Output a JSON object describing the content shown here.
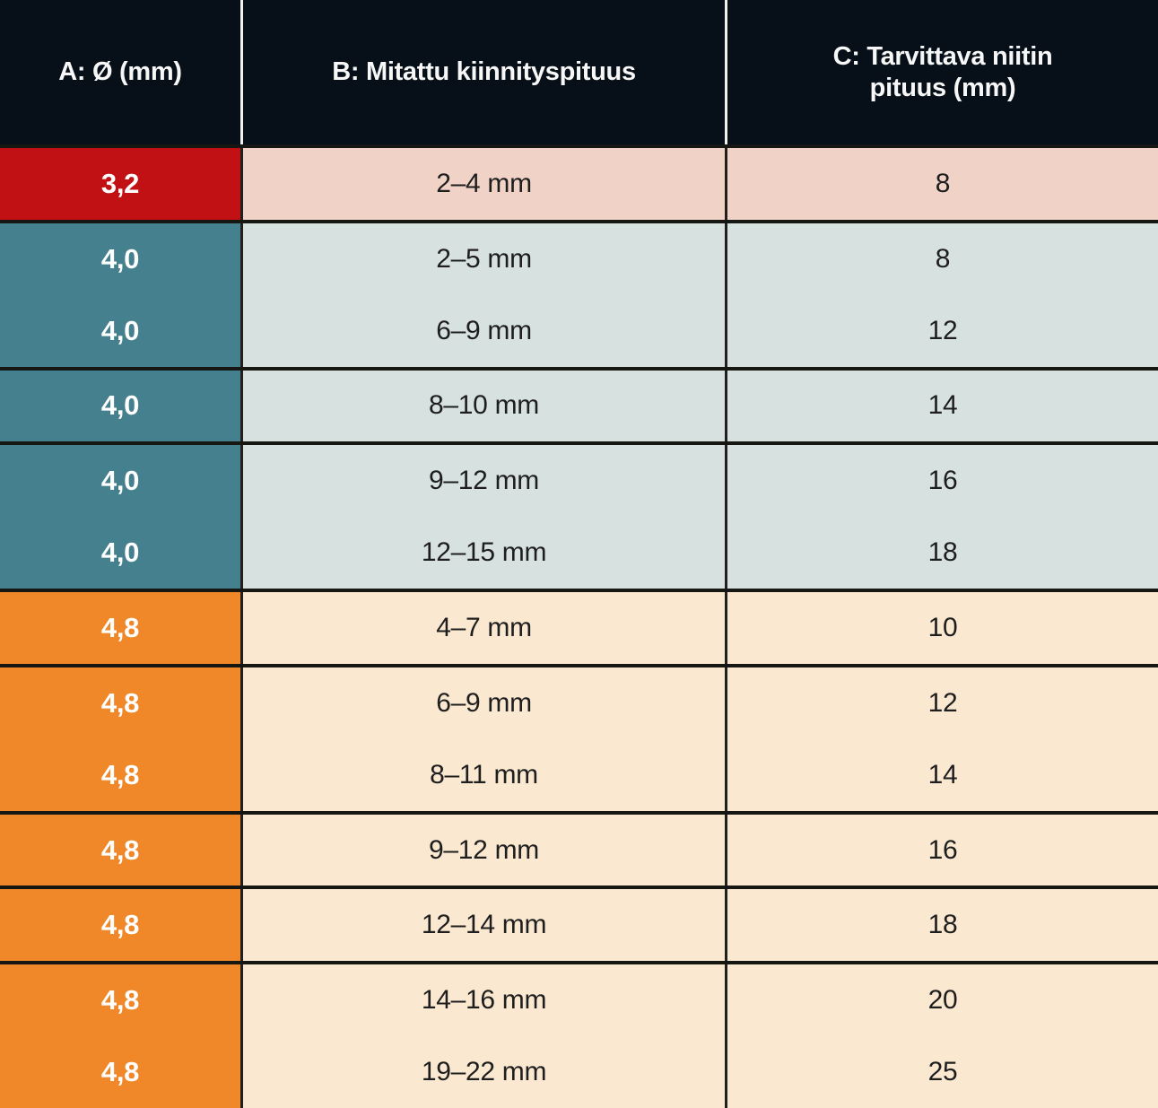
{
  "table": {
    "headers": {
      "diameter": "A: Ø (mm)",
      "grip": "B: Mitattu kiinnityspituus",
      "rivet_length": "C: Tarvittava niitin pituus (mm)"
    },
    "rows": [
      {
        "diameter": "3,2",
        "grip": "2–4 mm",
        "rivet_length": "8",
        "color": "red",
        "group_start": true
      },
      {
        "diameter": "4,0",
        "grip": "2–5 mm",
        "rivet_length": "8",
        "color": "teal",
        "group_start": true
      },
      {
        "diameter": "4,0",
        "grip": "6–9 mm",
        "rivet_length": "12",
        "color": "teal",
        "group_start": false
      },
      {
        "diameter": "4,0",
        "grip": "8–10 mm",
        "rivet_length": "14",
        "color": "teal",
        "group_start": true
      },
      {
        "diameter": "4,0",
        "grip": "9–12 mm",
        "rivet_length": "16",
        "color": "teal",
        "group_start": true
      },
      {
        "diameter": "4,0",
        "grip": "12–15 mm",
        "rivet_length": "18",
        "color": "teal",
        "group_start": false
      },
      {
        "diameter": "4,8",
        "grip": "4–7 mm",
        "rivet_length": "10",
        "color": "orange",
        "group_start": true
      },
      {
        "diameter": "4,8",
        "grip": "6–9 mm",
        "rivet_length": "12",
        "color": "orange",
        "group_start": true
      },
      {
        "diameter": "4,8",
        "grip": "8–11 mm",
        "rivet_length": "14",
        "color": "orange",
        "group_start": false
      },
      {
        "diameter": "4,8",
        "grip": "9–12 mm",
        "rivet_length": "16",
        "color": "orange",
        "group_start": true
      },
      {
        "diameter": "4,8",
        "grip": "12–14 mm",
        "rivet_length": "18",
        "color": "orange",
        "group_start": true
      },
      {
        "diameter": "4,8",
        "grip": "14–16 mm",
        "rivet_length": "20",
        "color": "orange",
        "group_start": true
      },
      {
        "diameter": "4,8",
        "grip": "19–22 mm",
        "rivet_length": "25",
        "color": "orange",
        "group_start": false
      }
    ],
    "colors": {
      "header_bg": "#071018",
      "red": "#c21115",
      "teal": "#45808e",
      "orange": "#f0882a",
      "red_row_bg": "#f0d3c6",
      "teal_row_bg": "#d7e1e0",
      "orange_row_bg": "#fae8d0",
      "group_border": "#161613",
      "header_divider": "#f2f0ec",
      "body_divider": "#21201d"
    }
  },
  "chart_data": {
    "type": "table",
    "title": "Rivet sizing table (Finnish): diameter vs. measured grip length vs. required rivet length",
    "columns": [
      "A: Ø (mm)",
      "B: Mitattu kiinnityspituus",
      "C: Tarvittava niitin pituus (mm)"
    ],
    "rows": [
      [
        "3,2",
        "2–4 mm",
        8
      ],
      [
        "4,0",
        "2–5 mm",
        8
      ],
      [
        "4,0",
        "6–9 mm",
        12
      ],
      [
        "4,0",
        "8–10 mm",
        14
      ],
      [
        "4,0",
        "9–12 mm",
        16
      ],
      [
        "4,0",
        "12–15 mm",
        18
      ],
      [
        "4,8",
        "4–7 mm",
        10
      ],
      [
        "4,8",
        "6–9 mm",
        12
      ],
      [
        "4,8",
        "8–11 mm",
        14
      ],
      [
        "4,8",
        "9–12 mm",
        16
      ],
      [
        "4,8",
        "12–14 mm",
        18
      ],
      [
        "4,8",
        "14–16 mm",
        20
      ],
      [
        "4,8",
        "19–22 mm",
        25
      ]
    ],
    "legend_position": "none",
    "grid": "group-separators-only"
  }
}
